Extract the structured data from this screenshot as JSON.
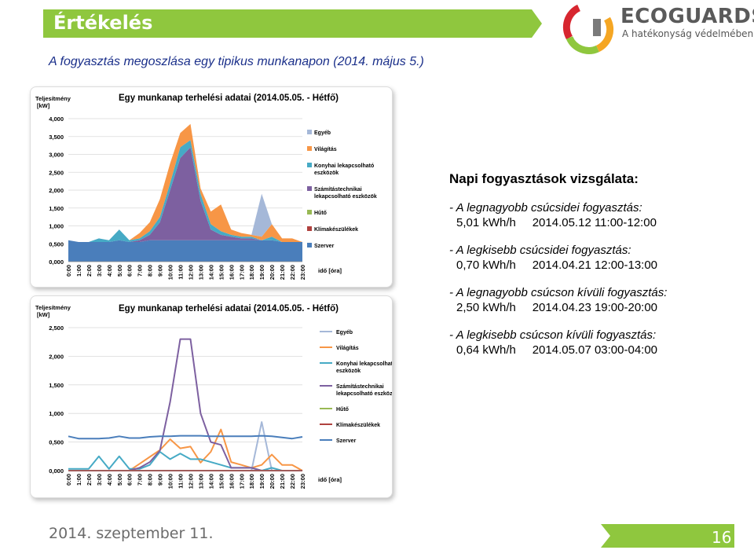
{
  "header": {
    "title": "Értékelés",
    "logo_name": "ECOGUARDS",
    "logo_slogan": "A hatékonyság védelmében",
    "banner_color": "#8fc73e"
  },
  "subtitle": "A fogyasztás megoszlása egy tipikus munkanapon (2014. május 5.)",
  "info": {
    "heading": "Napi fogyasztások vizsgálata:",
    "facts": [
      {
        "label": "- A legnagyobb csúcsidei fogyasztás:",
        "value": "5,01 kWh/h     2014.05.12 11:00-12:00"
      },
      {
        "label": "- A legkisebb csúcsidei fogyasztás:",
        "value": "0,70 kWh/h     2014.04.21 12:00-13:00"
      },
      {
        "label": "- A legnagyobb csúcson kívüli fogyasztás:",
        "value": "2,50 kWh/h     2014.04.23 19:00-20:00"
      },
      {
        "label": "- A legkisebb csúcson kívüli fogyasztás:",
        "value": "0,64 kWh/h     2014.05.07 03:00-04:00"
      }
    ]
  },
  "footer": {
    "date": "2014. szeptember 11.",
    "page": "16"
  },
  "chart_data": [
    {
      "type": "area",
      "stacked": true,
      "title": "Egy munkanap terhelési adatai (2014.05.05. - Hétfő)",
      "ylabel": "Teljesítmény [kW]",
      "xlabel": "idő [óra]",
      "ylim": [
        0,
        4
      ],
      "yticks": [
        "0,000",
        "0,500",
        "1,000",
        "1,500",
        "2,000",
        "2,500",
        "3,000",
        "3,500",
        "4,000"
      ],
      "categories": [
        "0:00",
        "1:00",
        "2:00",
        "3:00",
        "4:00",
        "5:00",
        "6:00",
        "7:00",
        "8:00",
        "9:00",
        "10:00",
        "11:00",
        "12:00",
        "13:00",
        "14:00",
        "15:00",
        "16:00",
        "17:00",
        "18:00",
        "19:00",
        "20:00",
        "21:00",
        "22:00",
        "23:00"
      ],
      "grid": true,
      "legend_position": "right",
      "series": [
        {
          "name": "Szerver",
          "color": "#4a7ebb",
          "values": [
            0.6,
            0.55,
            0.55,
            0.55,
            0.55,
            0.6,
            0.55,
            0.55,
            0.6,
            0.6,
            0.6,
            0.6,
            0.6,
            0.6,
            0.6,
            0.6,
            0.6,
            0.6,
            0.6,
            0.6,
            0.6,
            0.55,
            0.55,
            0.55
          ]
        },
        {
          "name": "Klímakészülékek",
          "color": "#b0413e",
          "values": [
            0,
            0,
            0,
            0,
            0,
            0,
            0,
            0,
            0,
            0,
            0,
            0,
            0,
            0,
            0,
            0,
            0,
            0,
            0,
            0,
            0,
            0,
            0,
            0
          ]
        },
        {
          "name": "Hűtő",
          "color": "#98b954",
          "values": [
            0,
            0,
            0,
            0,
            0,
            0,
            0,
            0,
            0,
            0,
            0,
            0,
            0,
            0,
            0,
            0,
            0,
            0,
            0,
            0,
            0,
            0,
            0,
            0
          ]
        },
        {
          "name": "Számítástechnikai lekapcsolható eszközök",
          "color": "#7d60a0",
          "values": [
            0,
            0,
            0,
            0,
            0,
            0,
            0,
            0.05,
            0.15,
            0.5,
            1.4,
            2.3,
            2.6,
            1.1,
            0.3,
            0.15,
            0.1,
            0.05,
            0.05,
            0,
            0,
            0,
            0,
            0
          ]
        },
        {
          "name": "Konyhai lekapcsolható eszközök",
          "color": "#46aac5",
          "values": [
            0,
            0,
            0,
            0.1,
            0.05,
            0.3,
            0.05,
            0.05,
            0.1,
            0.15,
            0.2,
            0.3,
            0.2,
            0.2,
            0.15,
            0.1,
            0.05,
            0.05,
            0.05,
            0,
            0.1,
            0,
            0,
            0
          ]
        },
        {
          "name": "Világítás",
          "color": "#f79646",
          "values": [
            0,
            0,
            0,
            0,
            0,
            0,
            0,
            0.15,
            0.25,
            0.5,
            0.55,
            0.4,
            0.45,
            0.15,
            0.35,
            0.75,
            0.15,
            0.1,
            0.05,
            0.1,
            0.35,
            0.1,
            0.1,
            0
          ]
        },
        {
          "name": "Egyéb",
          "color": "#a5b8d8",
          "values": [
            0,
            0,
            0,
            0,
            0,
            0,
            0,
            0,
            0,
            0,
            0,
            0,
            0,
            0,
            0,
            0,
            0,
            0,
            0,
            1.2,
            0,
            0,
            0,
            0
          ]
        }
      ]
    },
    {
      "type": "line",
      "title": "Egy munkanap terhelési adatai (2014.05.05. - Hétfő)",
      "ylabel": "Teljesítmény [kW]",
      "xlabel": "idő [óra]",
      "ylim": [
        0,
        2.5
      ],
      "yticks": [
        "0,000",
        "0,500",
        "1,000",
        "1,500",
        "2,000",
        "2,500"
      ],
      "categories": [
        "0:00",
        "1:00",
        "2:00",
        "3:00",
        "4:00",
        "5:00",
        "6:00",
        "7:00",
        "8:00",
        "9:00",
        "10:00",
        "11:00",
        "12:00",
        "13:00",
        "14:00",
        "15:00",
        "16:00",
        "17:00",
        "18:00",
        "19:00",
        "20:00",
        "21:00",
        "22:00",
        "23:00"
      ],
      "grid": true,
      "legend_position": "right",
      "series": [
        {
          "name": "Egyéb",
          "color": "#a5b8d8",
          "values": [
            0,
            0,
            0,
            0,
            0,
            0,
            0,
            0,
            0,
            0,
            0,
            0,
            0,
            0,
            0,
            0,
            0,
            0,
            0,
            0.85,
            0,
            0,
            0,
            0
          ]
        },
        {
          "name": "Világítás",
          "color": "#f79646",
          "values": [
            0,
            0,
            0,
            0,
            0,
            0,
            0,
            0.12,
            0.24,
            0.36,
            0.55,
            0.39,
            0.42,
            0.14,
            0.33,
            0.72,
            0.15,
            0.1,
            0.05,
            0.1,
            0.28,
            0.1,
            0.1,
            0
          ]
        },
        {
          "name": "Konyhai lekapcsolható eszközök",
          "color": "#46aac5",
          "values": [
            0.03,
            0.03,
            0.03,
            0.25,
            0.03,
            0.25,
            0.03,
            0.03,
            0.1,
            0.33,
            0.2,
            0.3,
            0.2,
            0.2,
            0.15,
            0.1,
            0.05,
            0.05,
            0.05,
            0,
            0.05,
            0,
            0,
            0
          ]
        },
        {
          "name": "Számítástechnikai lekapcsolható eszközök",
          "color": "#7d60a0",
          "values": [
            0,
            0,
            0,
            0,
            0,
            0,
            0,
            0.05,
            0.15,
            0.35,
            1.2,
            2.3,
            2.3,
            1.0,
            0.5,
            0.45,
            0.05,
            0.05,
            0.05,
            0,
            0,
            0,
            0,
            0
          ]
        },
        {
          "name": "Hűtő",
          "color": "#98b954",
          "values": [
            0,
            0,
            0,
            0,
            0,
            0,
            0,
            0,
            0,
            0,
            0,
            0,
            0,
            0,
            0,
            0,
            0,
            0,
            0,
            0,
            0,
            0,
            0,
            0
          ]
        },
        {
          "name": "Klímakészülékek",
          "color": "#b0413e",
          "values": [
            0,
            0,
            0,
            0,
            0,
            0,
            0,
            0,
            0,
            0,
            0,
            0,
            0,
            0,
            0,
            0,
            0,
            0,
            0,
            0,
            0,
            0,
            0,
            0
          ]
        },
        {
          "name": "Szerver",
          "color": "#4a7ebb",
          "values": [
            0.6,
            0.56,
            0.56,
            0.56,
            0.57,
            0.6,
            0.57,
            0.57,
            0.59,
            0.6,
            0.6,
            0.61,
            0.61,
            0.61,
            0.6,
            0.6,
            0.6,
            0.6,
            0.6,
            0.61,
            0.6,
            0.58,
            0.56,
            0.59
          ]
        }
      ]
    }
  ]
}
